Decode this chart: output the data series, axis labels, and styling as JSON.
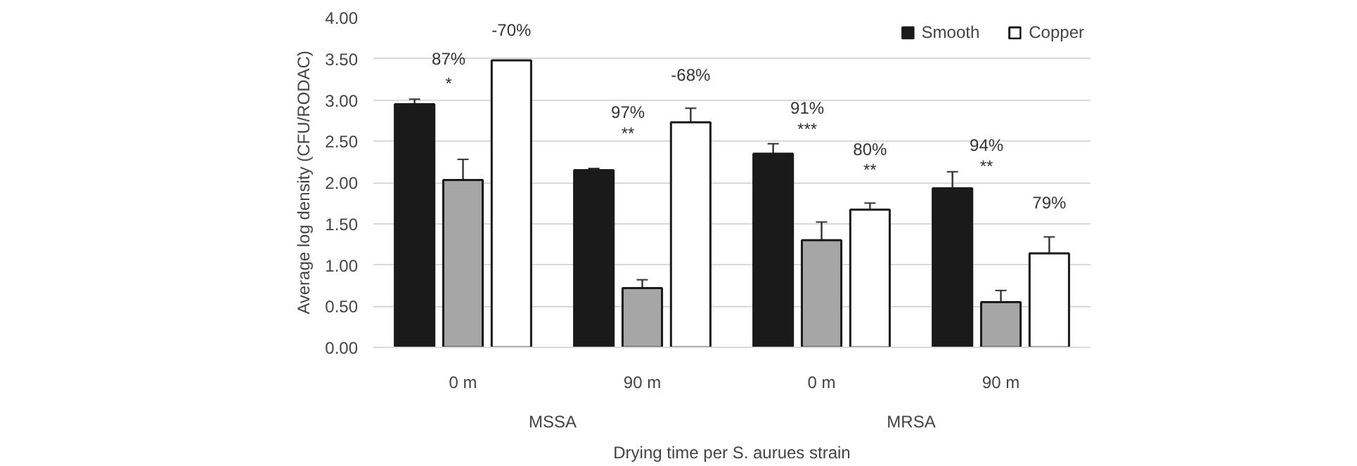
{
  "chart_data": {
    "type": "bar",
    "xlabel": "Drying time per S. aurues strain",
    "ylabel": "Average log density (CFU/RODAC)",
    "categories": [
      "0 m",
      "90 m",
      "0 m",
      "90 m"
    ],
    "series": [
      {
        "name": "Smooth",
        "color": "#1a1a1a",
        "values": [
          2.95,
          2.15,
          2.35,
          1.93
        ],
        "errors": [
          0.06,
          0.02,
          0.12,
          0.2
        ]
      },
      {
        "color": "#a6a6a6",
        "values": [
          2.03,
          0.72,
          1.3,
          0.55
        ],
        "errors": [
          0.25,
          0.1,
          0.22,
          0.14
        ]
      },
      {
        "name": "Copper",
        "color": "#ffffff",
        "values": [
          3.48,
          2.73,
          1.67,
          1.14
        ],
        "errors": [
          null,
          0.17,
          0.08,
          0.2
        ]
      }
    ],
    "ylim": [
      0,
      4
    ],
    "yticks": [
      {
        "value": 0,
        "label": "0.00"
      },
      {
        "value": 0.5,
        "label": "0.50"
      },
      {
        "value": 1,
        "label": "1.00"
      },
      {
        "value": 1.5,
        "label": "1.50"
      },
      {
        "value": 2,
        "label": "2.00"
      },
      {
        "value": 2.5,
        "label": "2.50"
      },
      {
        "value": 3,
        "label": "3.00"
      },
      {
        "value": 3.5,
        "label": "3.50"
      },
      {
        "value": 4,
        "label": "4.00"
      }
    ],
    "grid": "y",
    "legend": "top right",
    "annotations": [
      "87%",
      "*",
      "-70%",
      "97%",
      "**",
      "-68%",
      "91%",
      "***",
      "80%",
      "**",
      "94%",
      "**",
      "79%",
      "MSSA",
      "MRSA"
    ]
  }
}
